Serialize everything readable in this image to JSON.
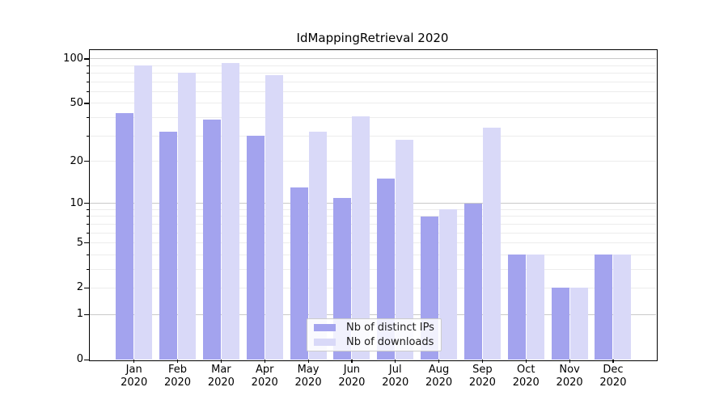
{
  "chart_data": {
    "type": "bar",
    "title": "IdMappingRetrieval 2020",
    "categories": [
      "Jan 2020",
      "Feb 2020",
      "Mar 2020",
      "Apr 2020",
      "May 2020",
      "Jun 2020",
      "Jul 2020",
      "Aug 2020",
      "Sep 2020",
      "Oct 2020",
      "Nov 2020",
      "Dec 2020"
    ],
    "series": [
      {
        "name": "Nb of distinct IPs",
        "color": "#a3a3ee",
        "values": [
          43,
          32,
          39,
          30,
          13,
          11,
          15,
          8,
          10,
          4,
          2,
          4
        ]
      },
      {
        "name": "Nb of downloads",
        "color": "#d9d9f8",
        "values": [
          90,
          81,
          94,
          78,
          32,
          41,
          28,
          9,
          34,
          4,
          2,
          4
        ]
      }
    ],
    "yscale": "log10(value+1)",
    "ylim": [
      0,
      116
    ],
    "y_ticks": [
      0,
      1,
      2,
      5,
      10,
      20,
      50,
      100
    ],
    "y_major_gridlines": [
      1,
      10,
      100
    ],
    "y_minor_gridlines": [
      2,
      3,
      4,
      5,
      6,
      7,
      8,
      9,
      20,
      30,
      40,
      50,
      60,
      70,
      80,
      90
    ],
    "grid": true,
    "legend_position": "lower center",
    "colors": {
      "major_grid": "#c9c9c9",
      "minor_grid": "#ececec",
      "axis": "#000000"
    },
    "legend": {
      "items": [
        {
          "label": "Nb of distinct IPs",
          "color": "#a3a3ee"
        },
        {
          "label": "Nb of downloads",
          "color": "#d9d9f8"
        }
      ]
    }
  }
}
